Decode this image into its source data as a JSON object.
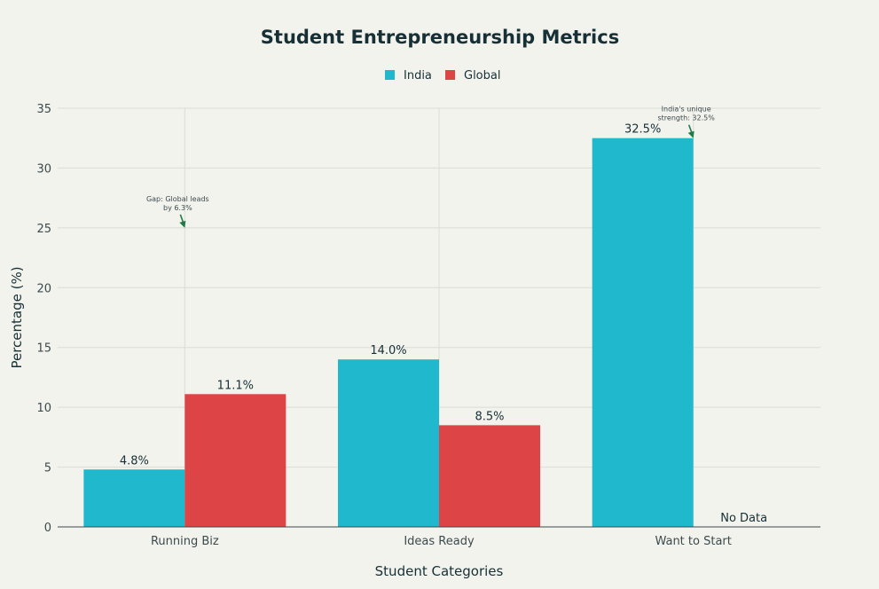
{
  "chart_data": {
    "type": "bar",
    "title": "Student Entrepreneurship Metrics",
    "xlabel": "Student Categories",
    "ylabel": "Percentage (%)",
    "ylim": [
      0,
      35
    ],
    "yticks": [
      0,
      5,
      10,
      15,
      20,
      25,
      30,
      35
    ],
    "grid": true,
    "legend_position": "top-center",
    "categories": [
      "Running Biz",
      "Ideas Ready",
      "Want to Start"
    ],
    "series": [
      {
        "name": "India",
        "color": "#20b8cc",
        "values": [
          4.8,
          14.0,
          32.5
        ],
        "labels": [
          "4.8%",
          "14.0%",
          "32.5%"
        ]
      },
      {
        "name": "Global",
        "color": "#dc4446",
        "values": [
          11.1,
          8.5,
          null
        ],
        "labels": [
          "11.1%",
          "8.5%",
          "No Data"
        ]
      }
    ],
    "annotations": [
      {
        "text_lines": [
          "Gap: Global leads",
          "by 6.3%"
        ],
        "category": "Running Biz",
        "y": 25,
        "arrow_color": "#1e7a46"
      },
      {
        "text_lines": [
          "India's unique",
          "strength: 32.5%"
        ],
        "category": "Want to Start",
        "y": 32.5,
        "arrow_color": "#1e7a46"
      }
    ]
  }
}
